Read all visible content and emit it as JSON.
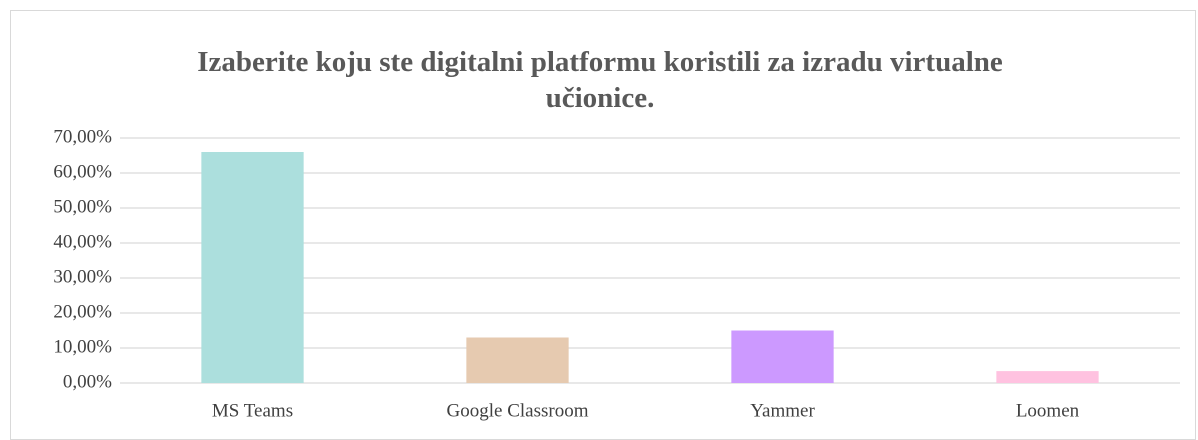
{
  "chart_data": {
    "type": "bar",
    "title": "Izaberite koju ste digitalni platformu koristili za izradu virtualne učionice.",
    "categories": [
      "MS Teams",
      "Google Classroom",
      "Yammer",
      "Loomen"
    ],
    "values": [
      66,
      13,
      15,
      3.4
    ],
    "colors": [
      "#acdfdd",
      "#e6cab0",
      "#cc99ff",
      "#ffc2e0"
    ],
    "ylim": [
      0,
      70
    ],
    "yticks": [
      {
        "value": 0,
        "label": "0,00%"
      },
      {
        "value": 10,
        "label": "10,00%"
      },
      {
        "value": 20,
        "label": "20,00%"
      },
      {
        "value": 30,
        "label": "30,00%"
      },
      {
        "value": 40,
        "label": "40,00%"
      },
      {
        "value": 50,
        "label": "50,00%"
      },
      {
        "value": 60,
        "label": "60,00%"
      },
      {
        "value": 70,
        "label": "70,00%"
      }
    ],
    "grid": true
  }
}
